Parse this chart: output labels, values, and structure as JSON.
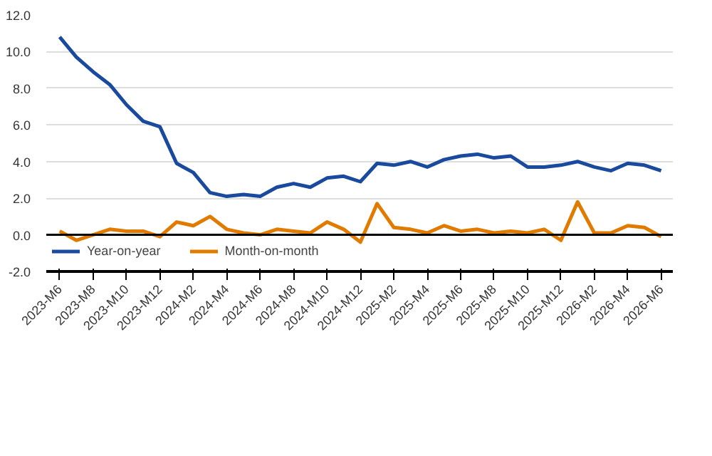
{
  "chart_data": {
    "type": "line",
    "categories": [
      "2023-M6",
      null,
      "2023-M8",
      null,
      "2023-M10",
      null,
      "2023-M12",
      null,
      "2024-M2",
      null,
      "2024-M4",
      null,
      "2024-M6",
      null,
      "2024-M8",
      null,
      "2024-M10",
      null,
      "2024-M12",
      null,
      "2025-M2",
      null,
      "2025-M4",
      null,
      "2025-M6",
      null,
      "2025-M8",
      null,
      "2025-M10",
      null,
      "2025-M12",
      null,
      "2026-M2",
      null,
      "2026-M4",
      null,
      "2026-M6"
    ],
    "series": [
      {
        "name": "Year-on-year",
        "color": "#1a4a9e",
        "values": [
          10.8,
          9.7,
          8.9,
          8.2,
          7.1,
          6.2,
          5.9,
          3.9,
          3.4,
          2.3,
          2.1,
          2.2,
          2.1,
          2.6,
          2.8,
          2.6,
          3.1,
          3.2,
          2.9,
          3.9,
          3.8,
          4.0,
          3.7,
          4.1,
          4.3,
          4.4,
          4.2,
          4.3,
          3.7,
          3.7,
          3.8,
          4.0,
          3.7,
          3.5,
          3.9,
          3.8,
          3.5
        ]
      },
      {
        "name": "Month-on-month",
        "color": "#e07b00",
        "values": [
          0.2,
          -0.3,
          0.0,
          0.3,
          0.2,
          0.2,
          -0.1,
          0.7,
          0.5,
          1.0,
          0.3,
          0.1,
          0.0,
          0.3,
          0.2,
          0.1,
          0.7,
          0.3,
          -0.4,
          1.7,
          0.4,
          0.3,
          0.1,
          0.5,
          0.2,
          0.3,
          0.1,
          0.2,
          0.1,
          0.3,
          -0.3,
          1.8,
          0.1,
          0.1,
          0.5,
          0.4,
          -0.1
        ]
      }
    ],
    "ylim": [
      -2,
      12
    ],
    "yticks": [
      {
        "value": -2,
        "label": "-2.0"
      },
      {
        "value": 0,
        "label": "0.0"
      },
      {
        "value": 2,
        "label": "2.0"
      },
      {
        "value": 4,
        "label": "4.0"
      },
      {
        "value": 6,
        "label": "6.0"
      },
      {
        "value": 8,
        "label": "8.0"
      },
      {
        "value": 10,
        "label": "10.0"
      },
      {
        "value": 12,
        "label": "12.0"
      }
    ],
    "ref_lines": [
      {
        "axis": "y",
        "value": 0,
        "color": "#000000"
      }
    ],
    "grid": "y",
    "legend": "bottom",
    "marker": "none",
    "line_style": "solid"
  }
}
